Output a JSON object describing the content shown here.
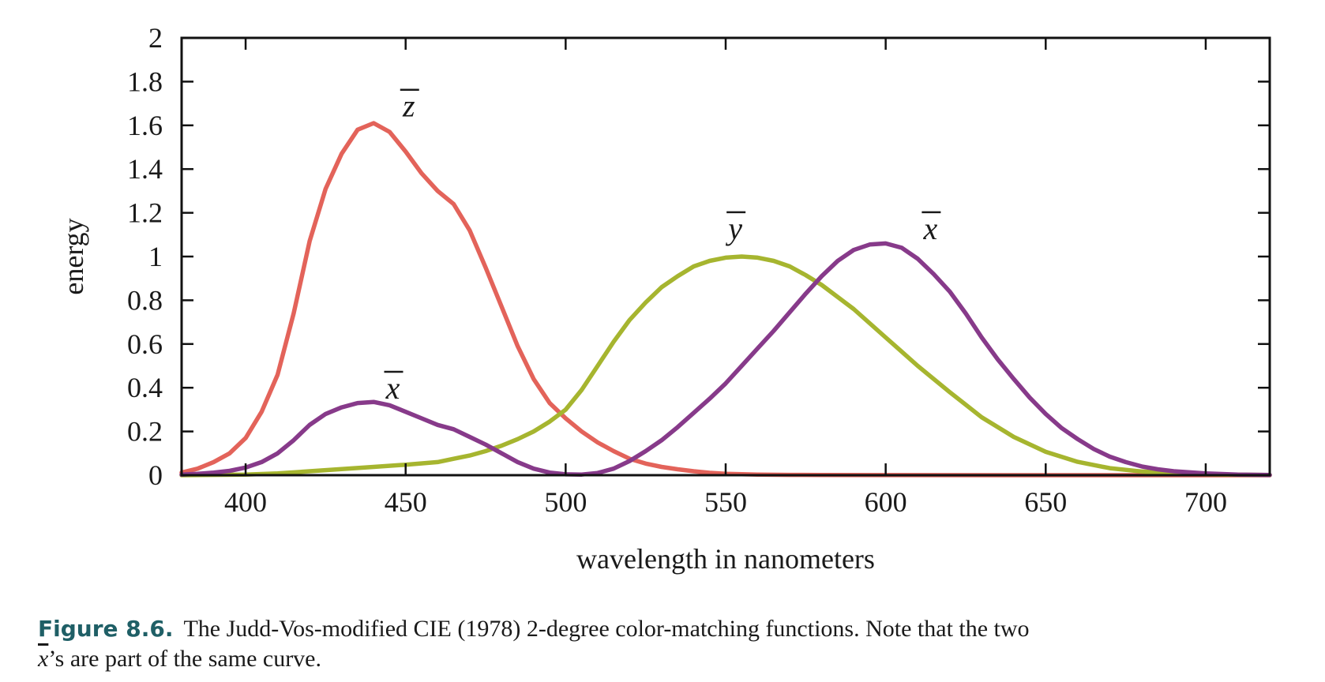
{
  "chart_data": {
    "type": "line",
    "xlabel": "wavelength in nanometers",
    "ylabel": "energy",
    "xlim": [
      380,
      720
    ],
    "ylim": [
      0,
      2
    ],
    "xticks": [
      400,
      450,
      500,
      550,
      600,
      650,
      700
    ],
    "yticks": [
      0,
      0.2,
      0.4,
      0.6,
      0.8,
      1,
      1.2,
      1.4,
      1.6,
      1.8,
      2
    ],
    "ytick_labels": [
      "0",
      "0.2",
      "0.4",
      "0.6",
      "0.8",
      "1",
      "1.2",
      "1.4",
      "1.6",
      "1.8",
      "2"
    ],
    "grid": false,
    "legend": "none",
    "series": [
      {
        "name": "z̄",
        "color": "#e3635a",
        "x": [
          380,
          385,
          390,
          395,
          400,
          405,
          410,
          415,
          420,
          425,
          430,
          435,
          440,
          445,
          450,
          455,
          460,
          465,
          470,
          475,
          480,
          485,
          490,
          495,
          500,
          505,
          510,
          515,
          520,
          525,
          530,
          535,
          540,
          545,
          550,
          560,
          570,
          580,
          600,
          650,
          700,
          720
        ],
        "y": [
          0.012,
          0.03,
          0.06,
          0.1,
          0.17,
          0.29,
          0.46,
          0.74,
          1.07,
          1.31,
          1.47,
          1.58,
          1.61,
          1.57,
          1.48,
          1.38,
          1.3,
          1.24,
          1.12,
          0.95,
          0.77,
          0.59,
          0.44,
          0.33,
          0.26,
          0.2,
          0.15,
          0.11,
          0.075,
          0.053,
          0.038,
          0.027,
          0.018,
          0.011,
          0.006,
          0.003,
          0.0015,
          0.001,
          0.0005,
          0,
          0,
          0
        ]
      },
      {
        "name": "ȳ",
        "color": "#a6b52f",
        "x": [
          380,
          400,
          410,
          420,
          430,
          440,
          450,
          460,
          465,
          470,
          475,
          480,
          485,
          490,
          495,
          500,
          505,
          510,
          515,
          520,
          525,
          530,
          535,
          540,
          545,
          550,
          555,
          560,
          565,
          570,
          575,
          580,
          590,
          600,
          610,
          620,
          630,
          640,
          650,
          660,
          670,
          680,
          690,
          700,
          710,
          720
        ],
        "y": [
          0,
          0.003,
          0.008,
          0.018,
          0.028,
          0.038,
          0.048,
          0.06,
          0.075,
          0.09,
          0.11,
          0.135,
          0.165,
          0.2,
          0.245,
          0.3,
          0.39,
          0.5,
          0.61,
          0.71,
          0.79,
          0.86,
          0.91,
          0.955,
          0.98,
          0.995,
          1.0,
          0.995,
          0.98,
          0.955,
          0.915,
          0.87,
          0.76,
          0.63,
          0.5,
          0.38,
          0.265,
          0.175,
          0.107,
          0.061,
          0.032,
          0.017,
          0.008,
          0.004,
          0.002,
          0.001
        ]
      },
      {
        "name": "x̄",
        "color": "#873a8a",
        "x": [
          380,
          385,
          390,
          395,
          400,
          405,
          410,
          415,
          420,
          425,
          430,
          435,
          440,
          445,
          450,
          455,
          460,
          465,
          470,
          475,
          480,
          485,
          490,
          495,
          500,
          505,
          510,
          515,
          520,
          525,
          530,
          535,
          540,
          545,
          550,
          555,
          560,
          565,
          570,
          575,
          580,
          585,
          590,
          595,
          600,
          605,
          610,
          615,
          620,
          625,
          630,
          635,
          640,
          645,
          650,
          655,
          660,
          665,
          670,
          675,
          680,
          685,
          690,
          700,
          710,
          720
        ],
        "y": [
          0.003,
          0.006,
          0.012,
          0.02,
          0.035,
          0.06,
          0.1,
          0.16,
          0.23,
          0.28,
          0.31,
          0.33,
          0.335,
          0.32,
          0.29,
          0.26,
          0.23,
          0.21,
          0.175,
          0.14,
          0.1,
          0.06,
          0.03,
          0.012,
          0.004,
          0.003,
          0.01,
          0.03,
          0.065,
          0.11,
          0.16,
          0.22,
          0.285,
          0.35,
          0.42,
          0.5,
          0.58,
          0.66,
          0.745,
          0.83,
          0.91,
          0.98,
          1.03,
          1.055,
          1.06,
          1.04,
          0.99,
          0.92,
          0.84,
          0.74,
          0.63,
          0.53,
          0.44,
          0.355,
          0.28,
          0.215,
          0.165,
          0.12,
          0.085,
          0.06,
          0.04,
          0.027,
          0.018,
          0.008,
          0.003,
          0.001
        ]
      }
    ],
    "annotations": [
      {
        "text": "z",
        "x": 451,
        "y": 1.64
      },
      {
        "text": "y",
        "x": 553,
        "y": 1.08
      },
      {
        "text": "x",
        "x": 614,
        "y": 1.08
      },
      {
        "text": "x",
        "x": 446,
        "y": 0.35
      }
    ]
  },
  "caption": {
    "label": "Figure 8.6.",
    "line1": "The Judd-Vos-modified CIE (1978) 2-degree color-matching functions. Note that the two",
    "xbar": "x",
    "line2_suffix": "’s are part of the same curve."
  }
}
